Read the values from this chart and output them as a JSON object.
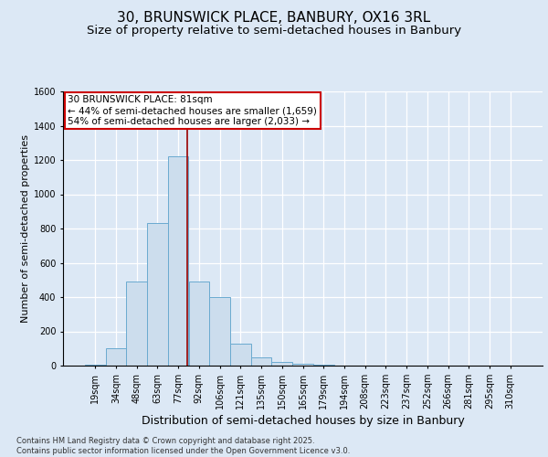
{
  "title1": "30, BRUNSWICK PLACE, BANBURY, OX16 3RL",
  "title2": "Size of property relative to semi-detached houses in Banbury",
  "xlabel": "Distribution of semi-detached houses by size in Banbury",
  "ylabel": "Number of semi-detached properties",
  "footnote": "Contains HM Land Registry data © Crown copyright and database right 2025.\nContains public sector information licensed under the Open Government Licence v3.0.",
  "categories": [
    "19sqm",
    "34sqm",
    "48sqm",
    "63sqm",
    "77sqm",
    "92sqm",
    "106sqm",
    "121sqm",
    "135sqm",
    "150sqm",
    "165sqm",
    "179sqm",
    "194sqm",
    "208sqm",
    "223sqm",
    "237sqm",
    "252sqm",
    "266sqm",
    "281sqm",
    "295sqm",
    "310sqm"
  ],
  "values": [
    3,
    100,
    490,
    830,
    1220,
    490,
    400,
    130,
    50,
    20,
    10,
    5,
    2,
    1,
    0,
    0,
    0,
    0,
    0,
    0,
    0
  ],
  "bar_color": "#ccdded",
  "bar_edge_color": "#6aaad0",
  "vline_pos": 4.42,
  "vline_color": "#990000",
  "annotation_text": "30 BRUNSWICK PLACE: 81sqm\n← 44% of semi-detached houses are smaller (1,659)\n54% of semi-detached houses are larger (2,033) →",
  "annotation_box_color": "#ffffff",
  "annotation_box_edge": "#cc0000",
  "ylim": [
    0,
    1600
  ],
  "yticks": [
    0,
    200,
    400,
    600,
    800,
    1000,
    1200,
    1400,
    1600
  ],
  "background_color": "#dce8f5",
  "plot_background": "#dce8f5",
  "grid_color": "#ffffff",
  "title_fontsize": 11,
  "subtitle_fontsize": 9.5,
  "tick_fontsize": 7,
  "ylabel_fontsize": 8,
  "xlabel_fontsize": 9,
  "footnote_fontsize": 6,
  "annot_fontsize": 7.5
}
